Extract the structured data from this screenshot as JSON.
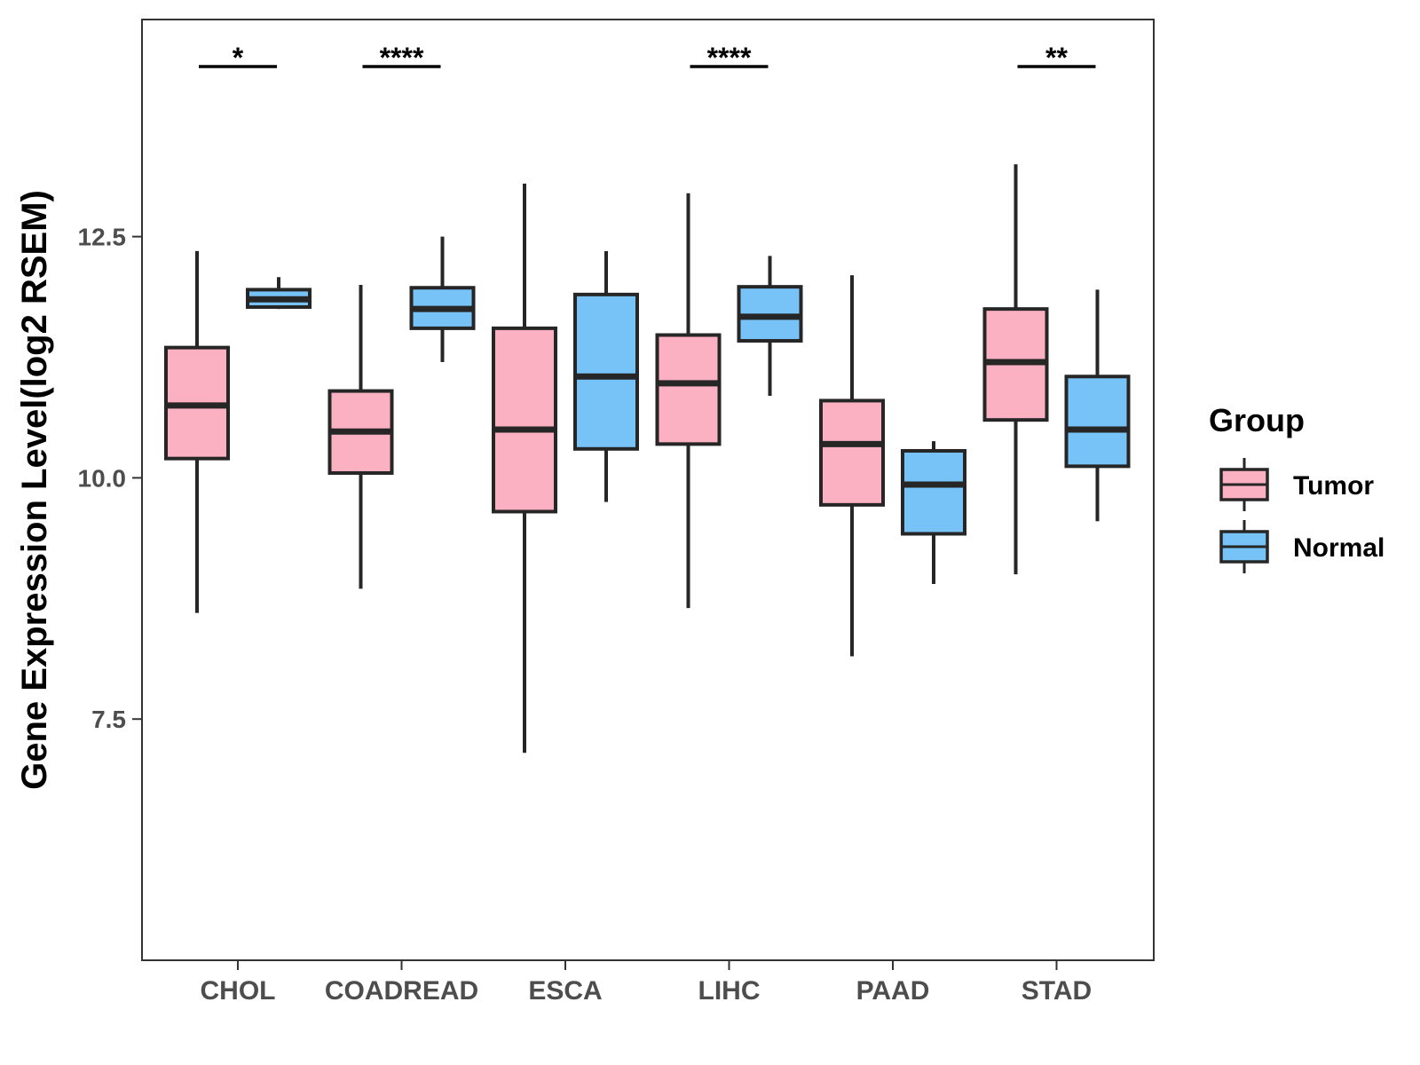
{
  "chart_data": {
    "type": "boxplot",
    "title": "",
    "xlabel": "",
    "ylabel": "Gene Expression Level(log2 RSEM)",
    "ylim": [
      5.0,
      14.75
    ],
    "yticks": [
      7.5,
      10.0,
      12.5
    ],
    "ytick_labels": [
      "7.5",
      "10.0",
      "12.5"
    ],
    "categories": [
      "CHOL",
      "COADREAD",
      "ESCA",
      "LIHC",
      "PAAD",
      "STAD"
    ],
    "legend": {
      "title": "Group",
      "position": "right",
      "entries": [
        "Tumor",
        "Normal"
      ]
    },
    "series": [
      {
        "name": "Tumor",
        "color": "#fbb1c2",
        "boxes": [
          {
            "category": "CHOL",
            "min": 8.6,
            "q1": 10.2,
            "median": 10.75,
            "q3": 11.35,
            "max": 12.35
          },
          {
            "category": "COADREAD",
            "min": 8.85,
            "q1": 10.05,
            "median": 10.48,
            "q3": 10.9,
            "max": 12.0
          },
          {
            "category": "ESCA",
            "min": 7.15,
            "q1": 9.65,
            "median": 10.5,
            "q3": 11.55,
            "max": 13.05
          },
          {
            "category": "LIHC",
            "min": 8.65,
            "q1": 10.35,
            "median": 10.98,
            "q3": 11.48,
            "max": 12.95
          },
          {
            "category": "PAAD",
            "min": 8.15,
            "q1": 9.72,
            "median": 10.35,
            "q3": 10.8,
            "max": 12.1
          },
          {
            "category": "STAD",
            "min": 9.0,
            "q1": 10.6,
            "median": 11.2,
            "q3": 11.75,
            "max": 13.25
          }
        ]
      },
      {
        "name": "Normal",
        "color": "#77c3f7",
        "boxes": [
          {
            "category": "CHOL",
            "min": 11.75,
            "q1": 11.77,
            "median": 11.85,
            "q3": 11.95,
            "max": 12.08
          },
          {
            "category": "COADREAD",
            "min": 11.2,
            "q1": 11.55,
            "median": 11.75,
            "q3": 11.97,
            "max": 12.5
          },
          {
            "category": "ESCA",
            "min": 9.75,
            "q1": 10.3,
            "median": 11.05,
            "q3": 11.9,
            "max": 12.35
          },
          {
            "category": "LIHC",
            "min": 10.85,
            "q1": 11.42,
            "median": 11.67,
            "q3": 11.98,
            "max": 12.3
          },
          {
            "category": "PAAD",
            "min": 8.9,
            "q1": 9.42,
            "median": 9.93,
            "q3": 10.28,
            "max": 10.38
          },
          {
            "category": "STAD",
            "min": 9.55,
            "q1": 10.12,
            "median": 10.5,
            "q3": 11.05,
            "max": 11.95
          }
        ]
      }
    ],
    "annotations": [
      {
        "category": "CHOL",
        "label": "*"
      },
      {
        "category": "COADREAD",
        "label": "****"
      },
      {
        "category": "LIHC",
        "label": "****"
      },
      {
        "category": "STAD",
        "label": "**"
      }
    ],
    "grid": false,
    "colors": {
      "outline": "#262626",
      "panel_border": "#333333",
      "tick_text": "#4d4d4d",
      "tumor": "#fbb1c2",
      "normal": "#77c3f7"
    }
  }
}
